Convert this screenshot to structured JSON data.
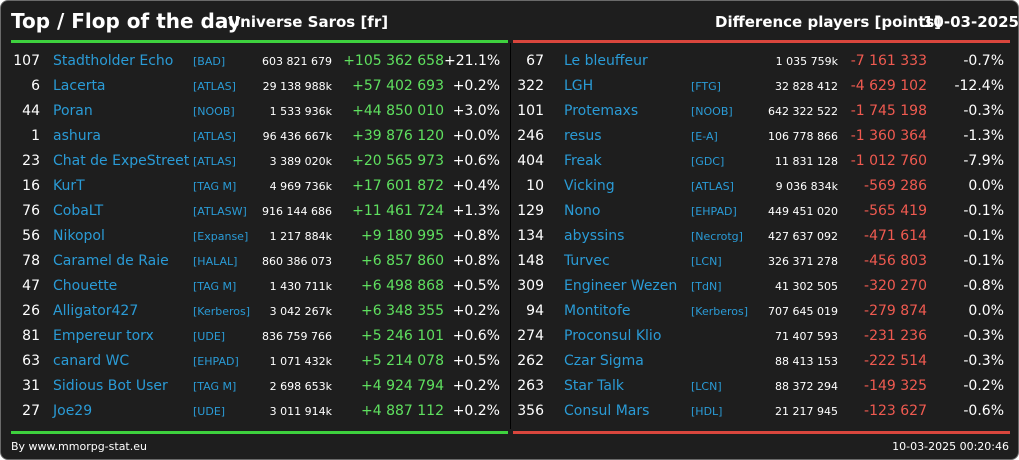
{
  "header": {
    "title": "Top / Flop of the day",
    "universe": "Universe Saros [fr]",
    "metric": "Difference players [points]",
    "date": "10-03-2025"
  },
  "colors": {
    "background": "#1e1e1e",
    "link": "#2a9bd6",
    "positive": "#5fe05f",
    "negative": "#f05a50",
    "top_bar": "#3ed13e",
    "flop_bar": "#d9463d"
  },
  "top": [
    {
      "rank": "107",
      "name": "Stadtholder Echo",
      "tag": "[BAD]",
      "score": "603 821 679",
      "diff": "+105 362 658",
      "pct": "+21.1%"
    },
    {
      "rank": "6",
      "name": "Lacerta",
      "tag": "[ATLAS]",
      "score": "29 138 988k",
      "diff": "+57 402 693",
      "pct": "+0.2%"
    },
    {
      "rank": "44",
      "name": "Poran",
      "tag": "[NOOB]",
      "score": "1 533 936k",
      "diff": "+44 850 010",
      "pct": "+3.0%"
    },
    {
      "rank": "1",
      "name": "ashura",
      "tag": "[ATLAS]",
      "score": "96 436 667k",
      "diff": "+39 876 120",
      "pct": "+0.0%"
    },
    {
      "rank": "23",
      "name": "Chat de ExpeStreet",
      "tag": "[ATLAS]",
      "score": "3 389 020k",
      "diff": "+20 565 973",
      "pct": "+0.6%"
    },
    {
      "rank": "16",
      "name": "KurT",
      "tag": "[TAG M]",
      "score": "4 969 736k",
      "diff": "+17 601 872",
      "pct": "+0.4%"
    },
    {
      "rank": "76",
      "name": "CobaLT",
      "tag": "[ATLASW]",
      "score": "916 144 686",
      "diff": "+11 461 724",
      "pct": "+1.3%"
    },
    {
      "rank": "56",
      "name": "Nikopol",
      "tag": "[Expanse]",
      "score": "1 217 884k",
      "diff": "+9 180 995",
      "pct": "+0.8%"
    },
    {
      "rank": "78",
      "name": "Caramel de Raie",
      "tag": "[HALAL]",
      "score": "860 386 073",
      "diff": "+6 857 860",
      "pct": "+0.8%"
    },
    {
      "rank": "47",
      "name": "Chouette",
      "tag": "[TAG M]",
      "score": "1 430 711k",
      "diff": "+6 498 868",
      "pct": "+0.5%"
    },
    {
      "rank": "26",
      "name": "Alligator427",
      "tag": "[Kerberos]",
      "score": "3 042 267k",
      "diff": "+6 348 355",
      "pct": "+0.2%"
    },
    {
      "rank": "81",
      "name": "Empereur torx",
      "tag": "[UDE]",
      "score": "836 759 766",
      "diff": "+5 246 101",
      "pct": "+0.6%"
    },
    {
      "rank": "63",
      "name": "canard WC",
      "tag": "[EHPAD]",
      "score": "1 071 432k",
      "diff": "+5 214 078",
      "pct": "+0.5%"
    },
    {
      "rank": "31",
      "name": "Sidious Bot User",
      "tag": "[TAG M]",
      "score": "2 698 653k",
      "diff": "+4 924 794",
      "pct": "+0.2%"
    },
    {
      "rank": "27",
      "name": "Joe29",
      "tag": "[UDE]",
      "score": "3 011 914k",
      "diff": "+4 887 112",
      "pct": "+0.2%"
    }
  ],
  "flop": [
    {
      "rank": "67",
      "name": "Le bleuffeur",
      "tag": "",
      "score": "1 035 759k",
      "diff": "-7 161 333",
      "pct": "-0.7%"
    },
    {
      "rank": "322",
      "name": "LGH",
      "tag": "[FTG]",
      "score": "32 828 412",
      "diff": "-4 629 102",
      "pct": "-12.4%"
    },
    {
      "rank": "101",
      "name": "Protemaxs",
      "tag": "[NOOB]",
      "score": "642 322 522",
      "diff": "-1 745 198",
      "pct": "-0.3%"
    },
    {
      "rank": "246",
      "name": "resus",
      "tag": "[E-A]",
      "score": "106 778 866",
      "diff": "-1 360 364",
      "pct": "-1.3%"
    },
    {
      "rank": "404",
      "name": "Freak",
      "tag": "[GDC]",
      "score": "11 831 128",
      "diff": "-1 012 760",
      "pct": "-7.9%"
    },
    {
      "rank": "10",
      "name": "Vicking",
      "tag": "[ATLAS]",
      "score": "9 036 834k",
      "diff": "-569 286",
      "pct": "0.0%"
    },
    {
      "rank": "129",
      "name": "Nono",
      "tag": "[EHPAD]",
      "score": "449 451 020",
      "diff": "-565 419",
      "pct": "-0.1%"
    },
    {
      "rank": "134",
      "name": "abyssins",
      "tag": "[Necrotg]",
      "score": "427 637 092",
      "diff": "-471 614",
      "pct": "-0.1%"
    },
    {
      "rank": "148",
      "name": "Turvec",
      "tag": "[LCN]",
      "score": "326 371 278",
      "diff": "-456 803",
      "pct": "-0.1%"
    },
    {
      "rank": "309",
      "name": "Engineer Wezen",
      "tag": "[TdN]",
      "score": "41 302 505",
      "diff": "-320 270",
      "pct": "-0.8%"
    },
    {
      "rank": "94",
      "name": "Montitofe",
      "tag": "[Kerberos]",
      "score": "707 645 019",
      "diff": "-279 874",
      "pct": "0.0%"
    },
    {
      "rank": "274",
      "name": "Proconsul Klio",
      "tag": "",
      "score": "71 407 593",
      "diff": "-231 236",
      "pct": "-0.3%"
    },
    {
      "rank": "262",
      "name": "Czar Sigma",
      "tag": "",
      "score": "88 413 153",
      "diff": "-222 514",
      "pct": "-0.3%"
    },
    {
      "rank": "263",
      "name": "Star Talk",
      "tag": "[LCN]",
      "score": "88 372 294",
      "diff": "-149 325",
      "pct": "-0.2%"
    },
    {
      "rank": "356",
      "name": "Consul Mars",
      "tag": "[HDL]",
      "score": "21 217 945",
      "diff": "-123 627",
      "pct": "-0.6%"
    }
  ],
  "footer": {
    "source": "By www.mmorpg-stat.eu",
    "timestamp": "10-03-2025 00:20:46"
  }
}
